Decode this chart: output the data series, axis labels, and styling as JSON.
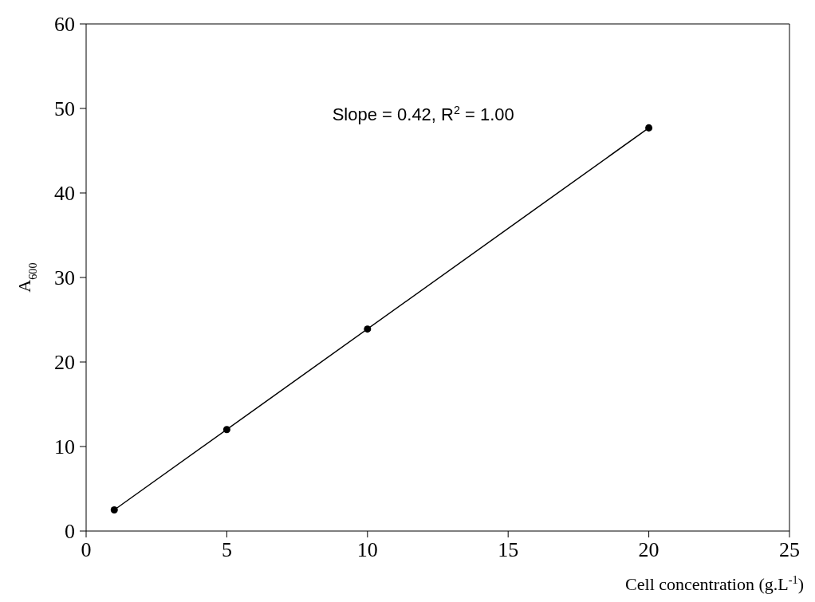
{
  "chart_data": {
    "type": "scatter",
    "xlabel": "Cell concentration  (g.L$^{-1}$)",
    "ylabel": "A$_{600}$",
    "annotations": [
      "Slope = 0.42, R$^{2}$ = 1.00"
    ],
    "x": [
      1,
      5,
      10,
      20
    ],
    "series": [
      {
        "color": "#000000",
        "marker": "circle",
        "values": [
          2.5,
          12,
          23.9,
          47.7
        ]
      },
      {
        "type": "line",
        "color": "#000000",
        "marker": "none",
        "x": [
          1,
          20
        ],
        "values": [
          2.5,
          47.7
        ]
      }
    ],
    "grid": false,
    "legend": false,
    "xlim": [
      0,
      25
    ],
    "xticks": [
      0,
      5,
      10,
      15,
      20,
      25
    ],
    "ylim": [
      0,
      60
    ],
    "yticks": [
      0,
      10,
      20,
      30,
      40,
      50,
      60
    ]
  }
}
